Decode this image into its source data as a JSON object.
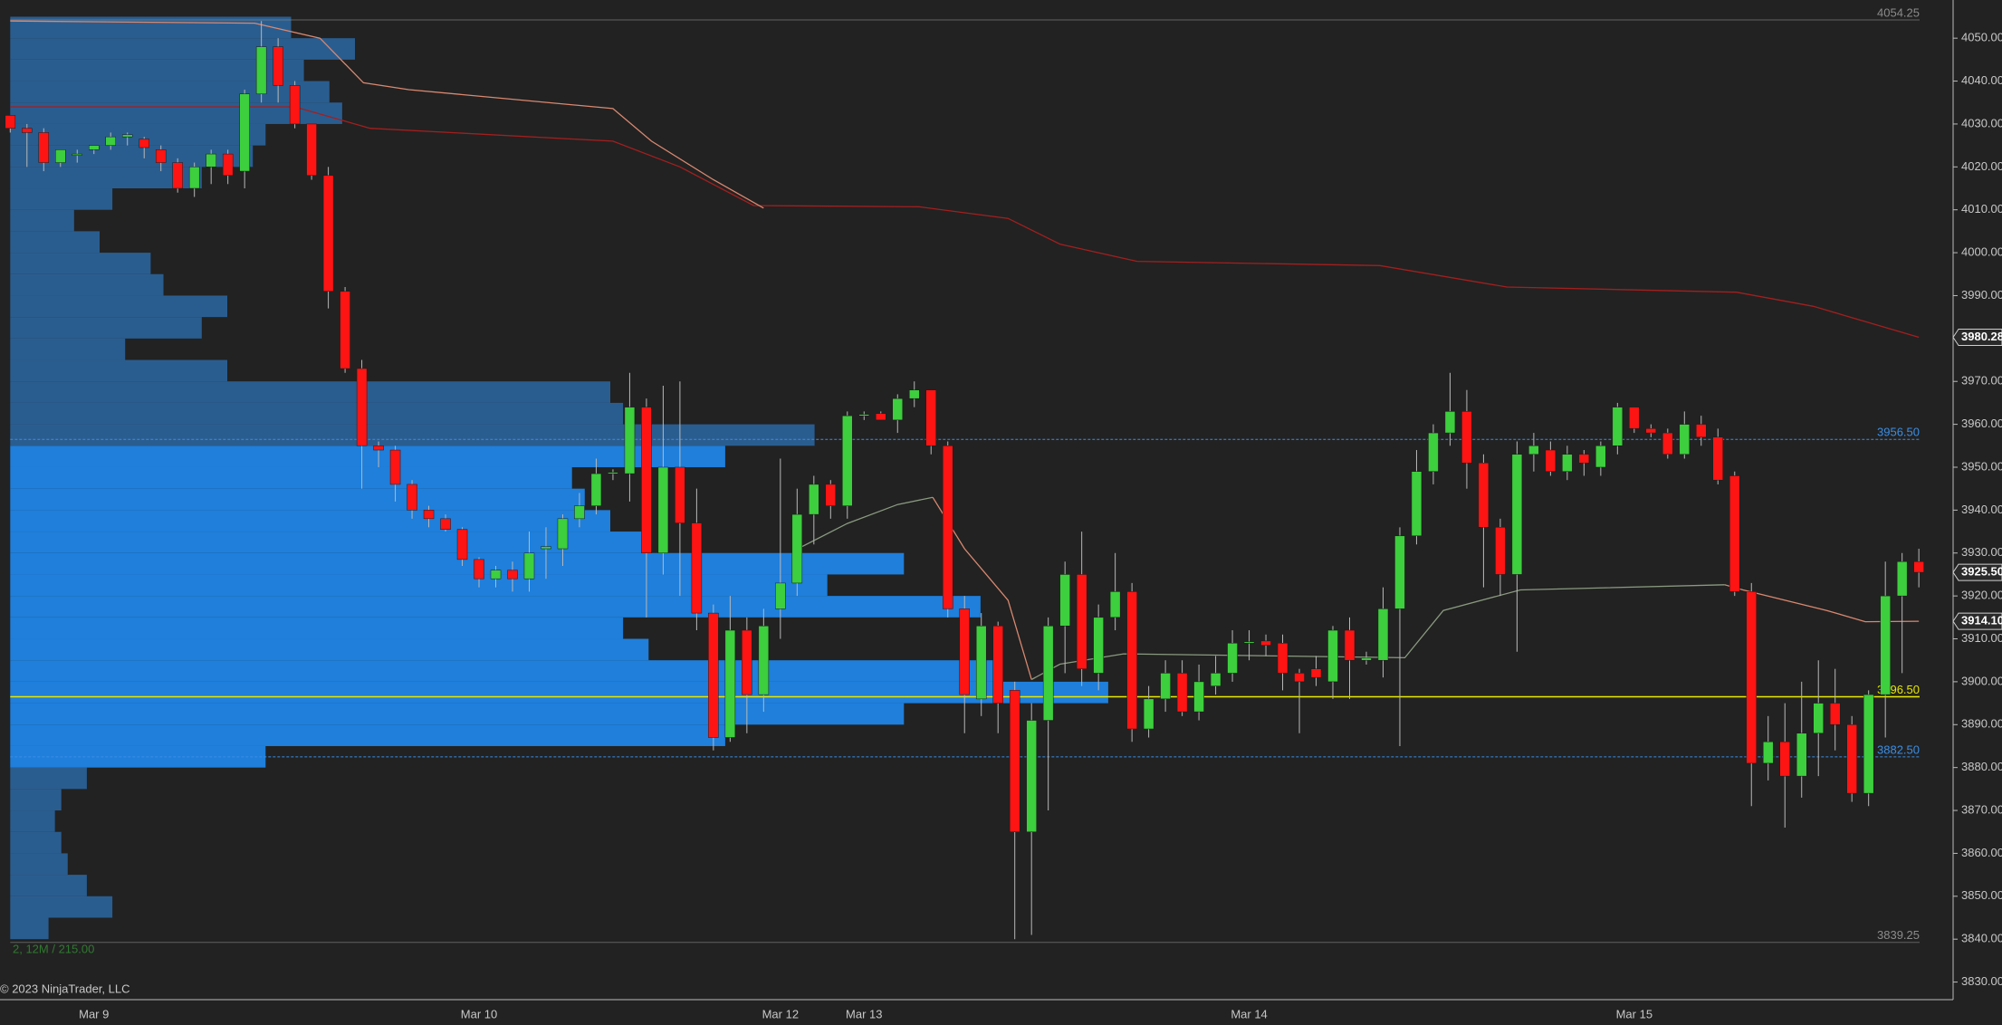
{
  "chart_data": {
    "type": "candlestick",
    "categories": [
      null,
      null,
      null,
      null,
      null,
      "Mar 9",
      null,
      null,
      null,
      null,
      null,
      null,
      null,
      null,
      null,
      null,
      null,
      null,
      null,
      null,
      null,
      null,
      null,
      null,
      null,
      null,
      null,
      null,
      "Mar 10",
      null,
      null,
      null,
      null,
      null,
      null,
      null,
      null,
      null,
      null,
      null,
      null,
      null,
      null,
      null,
      null,
      null,
      "Mar 12",
      null,
      null,
      null,
      null,
      "Mar 13",
      null,
      null,
      null,
      null,
      null,
      null,
      null,
      null,
      null,
      null,
      null,
      null,
      null,
      null,
      null,
      null,
      null,
      null,
      null,
      null,
      null,
      null,
      "Mar 14",
      null,
      null,
      null,
      null,
      null,
      null,
      null,
      null,
      null,
      null,
      null,
      null,
      null,
      null,
      null,
      null,
      null,
      null,
      null,
      null,
      null,
      null,
      "Mar 15",
      null,
      null,
      null,
      null,
      null,
      null,
      null,
      null,
      null,
      null,
      null,
      null,
      null,
      null,
      null,
      null,
      null
    ],
    "open": [
      4032,
      4029,
      4028,
      4021,
      4023,
      4024,
      4025,
      4027,
      4026.5,
      4024,
      4021,
      4015,
      4020,
      4023,
      4019,
      4037,
      4048,
      4039,
      4030,
      4018,
      3991,
      3973,
      3955,
      3954,
      3946,
      3940,
      3938,
      3935.5,
      3928.5,
      3924,
      3926,
      3924,
      3931,
      3931,
      3938,
      3941,
      3948.5,
      3948.5,
      3964,
      3930,
      3950,
      3937,
      3916,
      3887,
      3912,
      3897,
      3917,
      3923,
      3939,
      3946,
      3941,
      3962,
      3962.5,
      3961,
      3966,
      3968,
      3955,
      3917,
      3896,
      3913,
      3898,
      3865,
      3891,
      3913,
      3925,
      3902,
      3915,
      3921,
      3889,
      3896,
      3902,
      3893,
      3899,
      3902,
      3909,
      3909.5,
      3909,
      3902,
      3903,
      3900,
      3912,
      3905,
      3905,
      3917,
      3934,
      3949,
      3958,
      3963,
      3951,
      3936,
      3925,
      3953,
      3954,
      3949,
      3953,
      3950,
      3955,
      3964,
      3959,
      3958,
      3953,
      3960,
      3957,
      3948,
      3921,
      3881,
      3886,
      3878,
      3888,
      3895,
      3890,
      3874,
      3897,
      3920,
      3928
    ],
    "high": [
      4032,
      4030,
      4029,
      4024,
      4024,
      4025,
      4028,
      4028,
      4027,
      4025,
      4022,
      4021,
      4024,
      4024,
      4038,
      4054,
      4050,
      4040,
      4030,
      4020,
      3992,
      3975,
      3956,
      3955,
      3947,
      3941,
      3939,
      3936,
      3929,
      3927,
      3928,
      3935,
      3936,
      3939,
      3944,
      3952,
      3949.5,
      3972,
      3966,
      3969,
      3970,
      3945,
      3918,
      3920,
      3915,
      3917,
      3952,
      3945,
      3948,
      3947,
      3963,
      3963,
      3963,
      3967,
      3970,
      3968,
      3956,
      3920,
      3916,
      3914,
      3900,
      3895,
      3915,
      3928,
      3935,
      3918,
      3930,
      3923,
      3899,
      3905,
      3905,
      3904,
      3906,
      3912,
      3912,
      3911,
      3911,
      3903,
      3906,
      3913,
      3915,
      3907,
      3922,
      3936,
      3954,
      3960,
      3972,
      3968,
      3953,
      3938,
      3956,
      3958,
      3956,
      3955,
      3954,
      3956,
      3965,
      3964,
      3960,
      3959,
      3963,
      3962,
      3959,
      3949,
      3923,
      3892,
      3895,
      3900,
      3905,
      3903,
      3892,
      3898,
      3928,
      3930,
      3931
    ],
    "low": [
      4028,
      4020,
      4019,
      4020,
      4021,
      4023,
      4024,
      4025,
      4022,
      4019,
      4014,
      4013,
      4016,
      4016,
      4015,
      4035,
      4035,
      4029,
      4017,
      3987,
      3972,
      3945,
      3950,
      3942,
      3938,
      3936,
      3935,
      3927,
      3922,
      3922,
      3921,
      3921,
      3924,
      3927,
      3936,
      3939,
      3947,
      3942,
      3915,
      3925,
      3920,
      3912,
      3884,
      3886,
      3888,
      3893,
      3910,
      3920,
      3932,
      3938,
      3938,
      3961,
      3961,
      3958,
      3964,
      3953,
      3915,
      3888,
      3892,
      3888,
      3840,
      3841,
      3870,
      3902,
      3899,
      3898,
      3912,
      3886,
      3887,
      3893,
      3892,
      3891,
      3897,
      3900,
      3905,
      3906,
      3898,
      3888,
      3899,
      3896,
      3896,
      3904,
      3901,
      3885,
      3932,
      3946,
      3955,
      3945,
      3922,
      3920,
      3907,
      3949,
      3948,
      3947,
      3948,
      3948,
      3953,
      3958,
      3957,
      3952,
      3952,
      3955,
      3946,
      3920,
      3871,
      3877,
      3866,
      3873,
      3878,
      3884,
      3872,
      3871,
      3887,
      3902,
      3922
    ],
    "close": [
      4029,
      4028,
      4021,
      4024,
      4023,
      4025,
      4027,
      4027.5,
      4024.5,
      4021,
      4015,
      4020,
      4023,
      4018,
      4037,
      4048,
      4039,
      4030,
      4018,
      3991,
      3973,
      3955,
      3954,
      3946,
      3940,
      3938,
      3935.5,
      3928.5,
      3924,
      3926,
      3924,
      3930,
      3931.5,
      3938,
      3941,
      3948.5,
      3948.8,
      3964,
      3930,
      3950,
      3937,
      3916,
      3887,
      3912,
      3897,
      3913,
      3923,
      3939,
      3946,
      3941,
      3962,
      3962.3,
      3961,
      3966,
      3968,
      3955,
      3917,
      3897,
      3913,
      3895,
      3865,
      3891,
      3913,
      3925,
      3903,
      3915,
      3921,
      3889,
      3896,
      3902,
      3893,
      3900,
      3902,
      3909,
      3909.3,
      3908.5,
      3902,
      3900,
      3901,
      3912,
      3905,
      3905.5,
      3917,
      3934,
      3949,
      3958,
      3963,
      3951,
      3936,
      3925,
      3953,
      3955,
      3949,
      3953,
      3951,
      3955,
      3964,
      3959,
      3958,
      3953,
      3960,
      3957,
      3947,
      3921,
      3881,
      3886,
      3878,
      3888,
      3895,
      3890,
      3874,
      3897,
      3920,
      3928,
      3925.5
    ],
    "up_color": "#3dcf3d",
    "down_color": "#ff1414",
    "wick_color": "#b8b8b8",
    "lines": [
      {
        "color": "#a31f1f",
        "x": [
          0,
          17,
          21.5,
          36,
          40,
          44.4,
          54.3,
          59.6,
          62.7,
          67.3,
          81.8,
          89.4,
          103.1,
          107.7,
          114
        ],
        "values": [
          4034,
          4034,
          4029,
          4026,
          4020,
          4011,
          4010.7,
          4008,
          4002,
          3998,
          3997,
          3992,
          3990.8,
          3987.5,
          3980.28
        ]
      },
      {
        "color": "#d98870",
        "x": [
          0,
          14.6,
          18.5,
          21.1,
          23.8,
          36,
          38.3,
          42,
          45,
          null,
          55.1,
          57,
          59.6,
          61,
          null,
          102.4,
          103.5,
          108.5,
          110.8,
          114
        ],
        "values": [
          4054,
          4053.5,
          4050,
          4039.6,
          4038,
          4033.6,
          4026,
          4017,
          4010.4,
          null,
          3943,
          3931,
          3919,
          3900.5,
          null,
          3922.6,
          3921.4,
          3916.6,
          3914,
          3914.1
        ]
      },
      {
        "color": "#8a9a80",
        "x": [
          47.3,
          50,
          53,
          55.1,
          null,
          61,
          62.7,
          66.5,
          83.3,
          85.6,
          90.2,
          102.4
        ],
        "values": [
          3931.5,
          3936.9,
          3941.3,
          3943,
          null,
          3900.5,
          3904.1,
          3906.5,
          3905.6,
          3916.6,
          3921.4,
          3922.6
        ]
      }
    ],
    "profile": {
      "bins": [
        3840,
        3845,
        3850,
        3855,
        3860,
        3865,
        3870,
        3875,
        3880,
        3885,
        3890,
        3895,
        3900,
        3905,
        3910,
        3915,
        3920,
        3925,
        3930,
        3935,
        3940,
        3945,
        3950,
        3955,
        3960,
        3965,
        3970,
        3975,
        3980,
        3985,
        3990,
        3995,
        4000,
        4005,
        4010,
        4015,
        4020,
        4025,
        4030,
        4035,
        4040,
        4045,
        4050,
        4055
      ],
      "volumes": [
        30,
        80,
        60,
        45,
        40,
        35,
        40,
        60,
        200,
        560,
        700,
        860,
        770,
        500,
        480,
        760,
        640,
        700,
        500,
        470,
        450,
        440,
        560,
        630,
        480,
        470,
        170,
        90,
        150,
        170,
        120,
        110,
        70,
        50,
        80,
        150,
        190,
        200,
        260,
        250,
        230,
        270,
        220
      ],
      "color": "#2a5d8f",
      "va_color": "#1f7fdb"
    },
    "levels": [
      {
        "value": 4054.25,
        "label": "4054.25",
        "color": "#8c8c8c"
      },
      {
        "value": 3956.5,
        "label": "3956.50",
        "color": "#3a8ee6"
      },
      {
        "value": 3896.5,
        "label": "3896.50",
        "color": "#e8e800"
      },
      {
        "value": 3882.5,
        "label": "3882.50",
        "color": "#3a8ee6"
      },
      {
        "value": 3839.25,
        "label": "3839.25",
        "color": "#8c8c8c"
      }
    ],
    "price_markers": [
      3980.28,
      {
        "value": 3925.5,
        "label": "3925.50"
      },
      {
        "value": 3914.1,
        "label": "3914.10"
      }
    ],
    "ylim": [
      3825.9,
      4058.9
    ],
    "yticks": [
      {
        "value": 3830,
        "label": "3830.00"
      },
      {
        "value": 3840,
        "label": "3840.00"
      },
      {
        "value": 3850,
        "label": "3850.00"
      },
      {
        "value": 3860,
        "label": "3860.00"
      },
      {
        "value": 3870,
        "label": "3870.00"
      },
      {
        "value": 3880,
        "label": "3880.00"
      },
      {
        "value": 3890,
        "label": "3890.00"
      },
      {
        "value": 3900,
        "label": "3900.00"
      },
      {
        "value": 3910,
        "label": "3910.00"
      },
      {
        "value": 3920,
        "label": "3920.00"
      },
      {
        "value": 3930,
        "label": "3930.00"
      },
      {
        "value": 3940,
        "label": "3940.00"
      },
      {
        "value": 3950,
        "label": "3950.00"
      },
      {
        "value": 3960,
        "label": "3960.00"
      },
      {
        "value": 3970,
        "label": "3970.00"
      },
      {
        "value": 3980,
        "label": "3980.00"
      },
      {
        "value": 3990,
        "label": "3990.00"
      },
      {
        "value": 4000,
        "label": "4000.00"
      },
      {
        "value": 4010,
        "label": "4010.00"
      },
      {
        "value": 4020,
        "label": "4020.00"
      },
      {
        "value": 4030,
        "label": "4030.00"
      },
      {
        "value": 4040,
        "label": "4040.00"
      },
      {
        "value": 4050,
        "label": "4050.00"
      }
    ],
    "profile_info": "2, 12M / 215.00",
    "copyright": "© 2023 NinjaTrader, LLC"
  }
}
